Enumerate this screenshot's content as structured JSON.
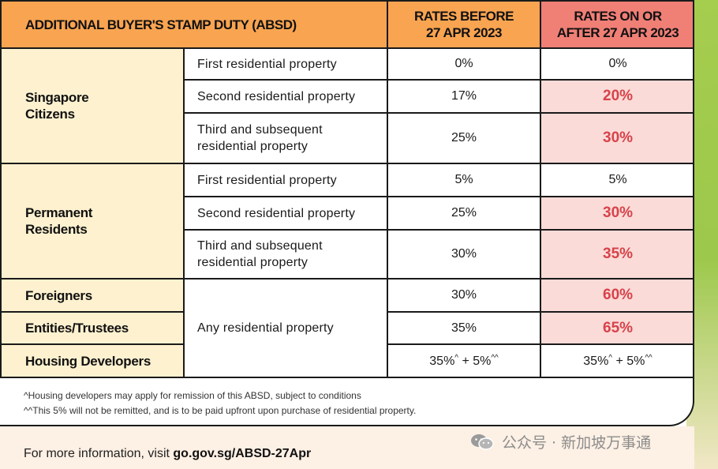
{
  "header": {
    "title": "ADDITIONAL BUYER'S STAMP DUTY (ABSD)",
    "col_before_line1": "RATES BEFORE",
    "col_before_line2": "27 APR 2023",
    "col_after_line1": "RATES ON OR",
    "col_after_line2": "AFTER 27 APR 2023"
  },
  "groups": {
    "citizens_line1": "Singapore",
    "citizens_line2": "Citizens",
    "pr_line1": "Permanent",
    "pr_line2": "Residents",
    "foreigners": "Foreigners",
    "entities": "Entities/Trustees",
    "developers": "Housing Developers"
  },
  "rows": {
    "sc1": {
      "property": "First residential property",
      "before": "0%",
      "after": "0%"
    },
    "sc2": {
      "property": "Second residential property",
      "before": "17%",
      "after": "20%"
    },
    "sc3": {
      "property_line1": "Third and subsequent",
      "property_line2": "residential property",
      "before": "25%",
      "after": "30%"
    },
    "pr1": {
      "property": "First residential property",
      "before": "5%",
      "after": "5%"
    },
    "pr2": {
      "property": "Second residential property",
      "before": "25%",
      "after": "30%"
    },
    "pr3": {
      "property_line1": "Third and subsequent",
      "property_line2": "residential property",
      "before": "30%",
      "after": "35%"
    },
    "any_property": "Any residential property",
    "foreigners": {
      "before": "30%",
      "after": "60%"
    },
    "entities": {
      "before": "35%",
      "after": "65%"
    },
    "developers": {
      "before_a": "35%",
      "sup_a": "^",
      "before_b": " + 5%",
      "sup_b": "^^",
      "after_a": "35%",
      "after_b": " + 5%"
    }
  },
  "notes": {
    "note1": "^Housing developers may apply for remission of this ABSD, subject to conditions",
    "note2": "^^This 5% will not be remitted, and is to be paid upfront upon purchase of residential property."
  },
  "footer": {
    "prefix": "For more information, visit ",
    "link": "go.gov.sg/ABSD-27Apr"
  },
  "watermark": {
    "text": "公众号 · 新加坡万事通"
  },
  "colors": {
    "header_orange": "#f9a451",
    "header_red": "#f07f76",
    "group_cream": "#fdf1cf",
    "highlight_pink": "#fadbd8",
    "highlight_text": "#d8424a"
  }
}
